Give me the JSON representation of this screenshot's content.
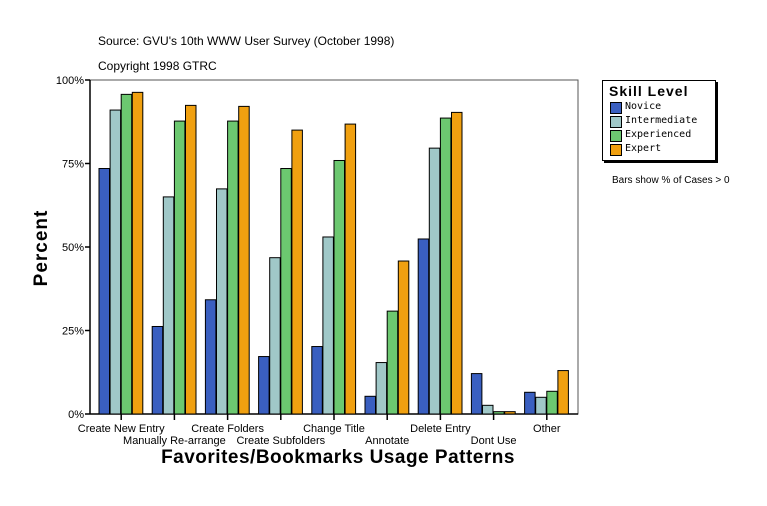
{
  "chart_data": {
    "type": "bar",
    "subtitle_lines": [
      "Source: GVU's 10th WWW User Survey (October 1998)",
      "Copyright 1998 GTRC"
    ],
    "xlabel": "Favorites/Bookmarks Usage Patterns",
    "ylabel": "Percent",
    "ylim": [
      0,
      100
    ],
    "yticks": [
      "0%",
      "25%",
      "50%",
      "75%",
      "100%"
    ],
    "ytick_values": [
      0,
      25,
      50,
      75,
      100
    ],
    "categories": [
      "Create New Entry",
      "Manually Re-arrange",
      "Create Folders",
      "Create Subfolders",
      "Change Title",
      "Annotate",
      "Delete Entry",
      "Dont Use",
      "Other"
    ],
    "legend_title": "Skill Level",
    "legend_position": "right",
    "note": "Bars show % of Cases > 0",
    "series": [
      {
        "name": "Novice",
        "color": "#3a5fc0",
        "values": [
          73.5,
          26.2,
          34.2,
          17.2,
          20.2,
          5.3,
          52.4,
          12.1,
          6.5
        ]
      },
      {
        "name": "Intermediate",
        "color": "#a0c8c8",
        "values": [
          91,
          65,
          67.4,
          46.8,
          53,
          15.4,
          79.6,
          2.6,
          5
        ]
      },
      {
        "name": "Experienced",
        "color": "#6cc870",
        "values": [
          95.7,
          87.7,
          87.7,
          73.5,
          75.9,
          30.8,
          88.6,
          0.7,
          6.8
        ]
      },
      {
        "name": "Expert",
        "color": "#f0a010",
        "values": [
          96.3,
          92.4,
          92.1,
          85,
          86.8,
          45.8,
          90.3,
          0.7,
          13
        ]
      }
    ]
  }
}
